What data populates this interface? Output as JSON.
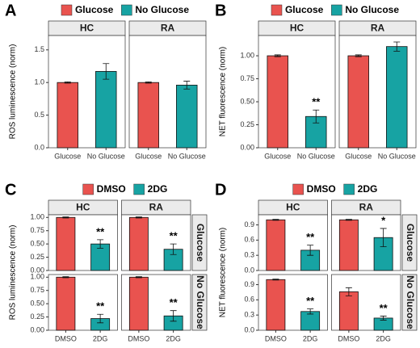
{
  "chart_data": [
    {
      "type": "bar",
      "panel": "A",
      "y_label": "ROS luminescence (norm)",
      "series": [
        {
          "name": "Glucose",
          "color": "#E9534F"
        },
        {
          "name": "No Glucose",
          "color": "#17A3A3"
        }
      ],
      "categories": [
        "Glucose",
        "No Glucose"
      ],
      "columns": [
        "HC",
        "RA"
      ],
      "ylim": [
        0,
        1.72
      ],
      "yticks": [
        {
          "value": 0,
          "label": "0.0"
        },
        {
          "value": 0.5,
          "label": "0.5"
        },
        {
          "value": 1,
          "label": "1.0"
        },
        {
          "value": 1.5,
          "label": "1.5"
        }
      ],
      "facets": [
        {
          "values": [
            1.0,
            1.17
          ],
          "errors": [
            0.01,
            0.12
          ]
        },
        {
          "values": [
            1.0,
            0.96
          ],
          "errors": [
            0.01,
            0.06
          ]
        }
      ]
    },
    {
      "type": "bar",
      "panel": "B",
      "y_label": "NET fluorescence (norm)",
      "series": [
        {
          "name": "Glucose",
          "color": "#E9534F"
        },
        {
          "name": "No Glucose",
          "color": "#17A3A3"
        }
      ],
      "categories": [
        "Glucose",
        "No Glucose"
      ],
      "columns": [
        "HC",
        "RA"
      ],
      "ylim": [
        0,
        1.22
      ],
      "yticks": [
        {
          "value": 0,
          "label": "0.00"
        },
        {
          "value": 0.25,
          "label": "0.25"
        },
        {
          "value": 0.5,
          "label": "0.50"
        },
        {
          "value": 0.75,
          "label": "0.75"
        },
        {
          "value": 1,
          "label": "1.00"
        }
      ],
      "facets": [
        {
          "values": [
            1.0,
            0.34
          ],
          "errors": [
            0.01,
            0.07
          ],
          "annotations": [
            null,
            "**"
          ]
        },
        {
          "values": [
            1.0,
            1.1
          ],
          "errors": [
            0.01,
            0.05
          ]
        }
      ]
    },
    {
      "type": "bar",
      "panel": "C",
      "y_label": "ROS luminescence (norm)",
      "series": [
        {
          "name": "DMSO",
          "color": "#E9534F"
        },
        {
          "name": "2DG",
          "color": "#17A3A3"
        }
      ],
      "categories": [
        "DMSO",
        "2DG"
      ],
      "columns": [
        "HC",
        "RA"
      ],
      "rows": [
        "Glucose",
        "No Glucose"
      ],
      "ylim": [
        0,
        1.05
      ],
      "yticks": [
        {
          "value": 0,
          "label": "0.00"
        },
        {
          "value": 0.25,
          "label": "0.25"
        },
        {
          "value": 0.5,
          "label": "0.50"
        },
        {
          "value": 0.75,
          "label": "0.75"
        },
        {
          "value": 1,
          "label": "1.00"
        }
      ],
      "facets": [
        {
          "values": [
            1.0,
            0.5
          ],
          "errors": [
            0.01,
            0.08
          ],
          "annotations": [
            null,
            "**"
          ]
        },
        {
          "values": [
            1.0,
            0.4
          ],
          "errors": [
            0.01,
            0.1
          ],
          "annotations": [
            null,
            "**"
          ]
        },
        {
          "values": [
            1.0,
            0.22
          ],
          "errors": [
            0.01,
            0.08
          ],
          "annotations": [
            null,
            "**"
          ]
        },
        {
          "values": [
            1.0,
            0.27
          ],
          "errors": [
            0.01,
            0.1
          ],
          "annotations": [
            null,
            "**"
          ]
        }
      ]
    },
    {
      "type": "bar",
      "panel": "D",
      "y_label": "NET fluorescence (norm)",
      "series": [
        {
          "name": "DMSO",
          "color": "#E9534F"
        },
        {
          "name": "2DG",
          "color": "#17A3A3"
        }
      ],
      "categories": [
        "DMSO",
        "2DG"
      ],
      "columns": [
        "HC",
        "RA"
      ],
      "rows": [
        "Glucose",
        "No Glucose"
      ],
      "ylim": [
        0,
        1.1
      ],
      "yticks": [
        {
          "value": 0,
          "label": "0.0"
        },
        {
          "value": 0.3,
          "label": "0.3"
        },
        {
          "value": 0.6,
          "label": "0.6"
        },
        {
          "value": 0.9,
          "label": "0.9"
        }
      ],
      "facets": [
        {
          "values": [
            1.0,
            0.4
          ],
          "errors": [
            0.01,
            0.1
          ],
          "annotations": [
            null,
            "**"
          ]
        },
        {
          "values": [
            1.0,
            0.65
          ],
          "errors": [
            0.01,
            0.18
          ],
          "annotations": [
            null,
            "*"
          ]
        },
        {
          "values": [
            1.0,
            0.37
          ],
          "errors": [
            0.01,
            0.05
          ],
          "annotations": [
            null,
            "**"
          ]
        },
        {
          "values": [
            0.76,
            0.24
          ],
          "errors": [
            0.08,
            0.04
          ],
          "annotations": [
            null,
            "**"
          ]
        }
      ]
    }
  ]
}
